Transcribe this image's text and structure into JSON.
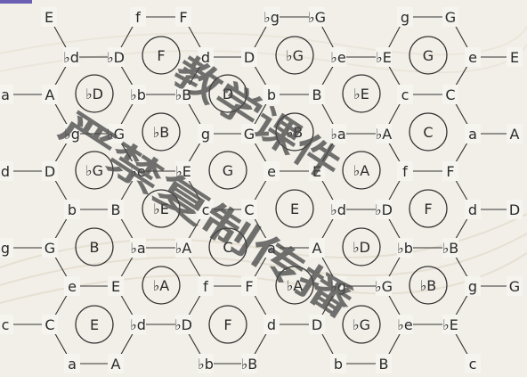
{
  "title": "",
  "watermark": {
    "row1": "教学课件",
    "row2": "严禁复制传播"
  },
  "colors": {
    "background": "#f2efe8",
    "text": "#2b2b2b",
    "accent": "#6a5fb3"
  },
  "nodes": [
    "E",
    "f",
    "F",
    "♭g",
    "♭G",
    "g",
    "G",
    "♭d",
    "♭D",
    "d",
    "D",
    "♭e",
    "♭E",
    "e",
    "E",
    "a",
    "A",
    "♭b",
    "♭B",
    "b",
    "B",
    "c",
    "C",
    "♭g",
    "♭G",
    "g",
    "G",
    "♭a",
    "♭A",
    "a",
    "A",
    "d",
    "D",
    "♭e",
    "♭E",
    "e",
    "E",
    "f",
    "F",
    "b",
    "B",
    "c",
    "C",
    "♭d",
    "♭D",
    "d",
    "D",
    "g",
    "G",
    "♭a",
    "♭A",
    "a",
    "A",
    "♭b",
    "♭B",
    "e",
    "E",
    "f",
    "F",
    "♭g",
    "♭G",
    "g",
    "G",
    "c",
    "C",
    "♭d",
    "♭D",
    "d",
    "D",
    "♭e",
    "♭E",
    "a",
    "A",
    "♭b",
    "♭B",
    "b",
    "B",
    "c"
  ],
  "chords": [
    "F",
    "♭G",
    "G",
    "♭D",
    "D",
    "♭E",
    "♭B",
    "♭B",
    "C",
    "♭G",
    "G",
    "♭A",
    "♭E",
    "E",
    "F",
    "B",
    "C",
    "♭D",
    "♭A",
    "♭A",
    "♭B",
    "E",
    "F",
    "♭G"
  ]
}
